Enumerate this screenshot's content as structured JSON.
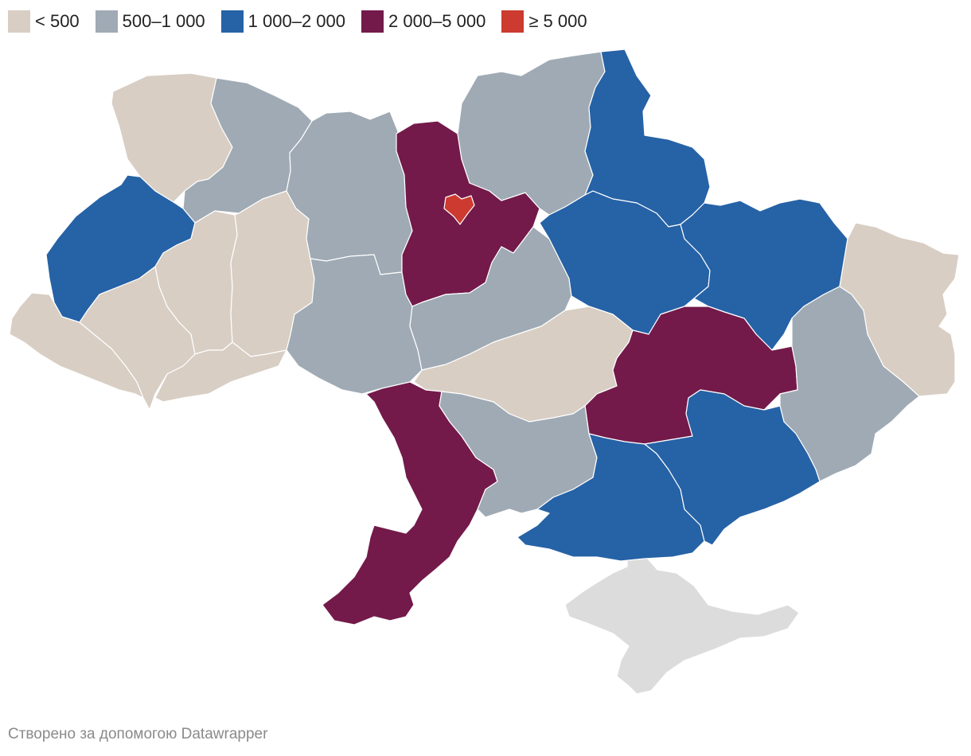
{
  "legend": [
    {
      "label": "< 500",
      "color": "#d8cec4"
    },
    {
      "label": "500–1 000",
      "color": "#9faab4"
    },
    {
      "label": "1 000–2 000",
      "color": "#2662a6"
    },
    {
      "label": "2 000–5 000",
      "color": "#731a4a"
    },
    {
      "label": "≥ 5 000",
      "color": "#cc3a30"
    }
  ],
  "no_data_color": "#dcdcdc",
  "regions": [
    {
      "id": "volyn",
      "bucket": 0
    },
    {
      "id": "rivne",
      "bucket": 1
    },
    {
      "id": "lviv",
      "bucket": 2
    },
    {
      "id": "zakarpattia",
      "bucket": 0
    },
    {
      "id": "ivano-frankivsk",
      "bucket": 0
    },
    {
      "id": "ternopil",
      "bucket": 0
    },
    {
      "id": "khmelnytskyi",
      "bucket": 0
    },
    {
      "id": "chernivtsi",
      "bucket": 0
    },
    {
      "id": "zhytomyr",
      "bucket": 1
    },
    {
      "id": "vinnytsia",
      "bucket": 1
    },
    {
      "id": "kyiv-oblast",
      "bucket": 3
    },
    {
      "id": "kyiv-city",
      "bucket": 4
    },
    {
      "id": "chernihiv",
      "bucket": 1
    },
    {
      "id": "cherkasy",
      "bucket": 1
    },
    {
      "id": "sumy",
      "bucket": 2
    },
    {
      "id": "poltava",
      "bucket": 2
    },
    {
      "id": "kharkiv",
      "bucket": 2
    },
    {
      "id": "kirovohrad",
      "bucket": 0
    },
    {
      "id": "dnipropetrovsk",
      "bucket": 3
    },
    {
      "id": "donetsk",
      "bucket": 1
    },
    {
      "id": "luhansk",
      "bucket": 0
    },
    {
      "id": "odesa",
      "bucket": 3
    },
    {
      "id": "mykolaiv",
      "bucket": 1
    },
    {
      "id": "kherson",
      "bucket": 2
    },
    {
      "id": "zaporizhzhia",
      "bucket": 2
    },
    {
      "id": "crimea",
      "bucket": null
    }
  ],
  "credit": "Створено за допомогою Datawrapper"
}
